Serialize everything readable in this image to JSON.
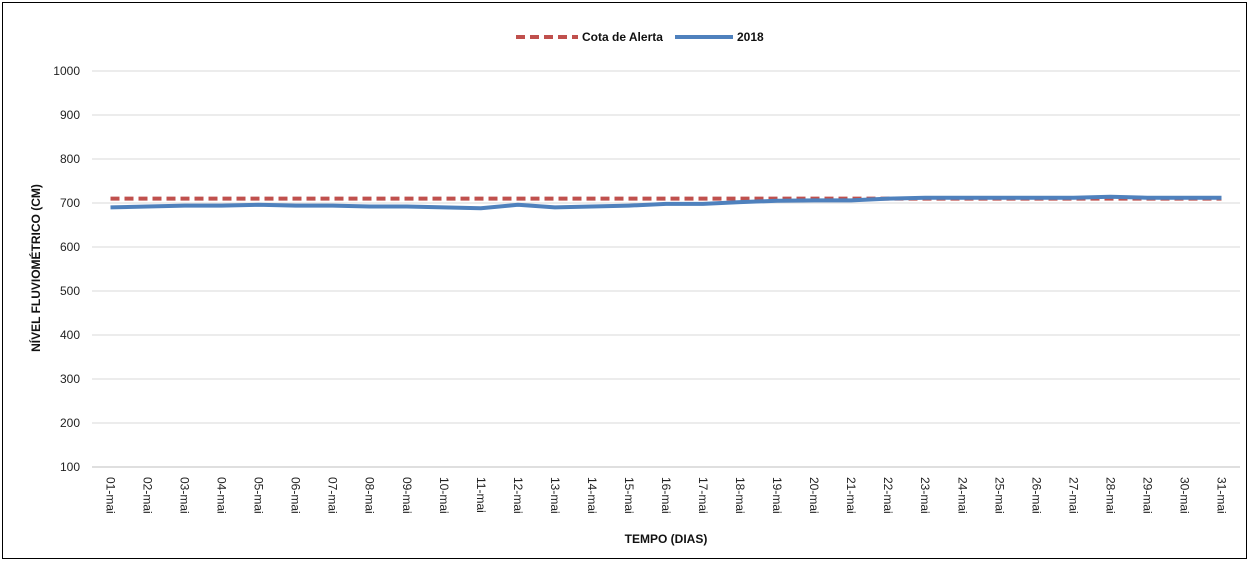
{
  "chart_data": {
    "type": "line",
    "title": "",
    "xlabel": "TEMPO (DIAS)",
    "ylabel": "NÍVEL FLUVIOMÉTRICO (CM)",
    "ylim": [
      100,
      1000
    ],
    "yticks": [
      100,
      200,
      300,
      400,
      500,
      600,
      700,
      800,
      900,
      1000
    ],
    "grid": "horizontal",
    "legend_position": "top",
    "categories": [
      "01-mai",
      "02-mai",
      "03-mai",
      "04-mai",
      "05-mai",
      "06-mai",
      "07-mai",
      "08-mai",
      "09-mai",
      "10-mai",
      "11-mai",
      "12-mai",
      "13-mai",
      "14-mai",
      "15-mai",
      "16-mai",
      "17-mai",
      "18-mai",
      "19-mai",
      "20-mai",
      "21-mai",
      "22-mai",
      "23-mai",
      "24-mai",
      "25-mai",
      "26-mai",
      "27-mai",
      "28-mai",
      "29-mai",
      "30-mai",
      "31-mai"
    ],
    "series": [
      {
        "name": "Cota de Alerta",
        "color": "#c0504d",
        "style": "dashed",
        "values": [
          710,
          710,
          710,
          710,
          710,
          710,
          710,
          710,
          710,
          710,
          710,
          710,
          710,
          710,
          710,
          710,
          710,
          710,
          710,
          710,
          710,
          710,
          710,
          710,
          710,
          710,
          710,
          710,
          710,
          710,
          710
        ]
      },
      {
        "name": "2018",
        "color": "#4f81bd",
        "style": "solid",
        "values": [
          690,
          692,
          694,
          694,
          696,
          694,
          694,
          692,
          692,
          690,
          688,
          696,
          690,
          692,
          694,
          698,
          698,
          702,
          705,
          706,
          706,
          710,
          712,
          712,
          712,
          712,
          712,
          714,
          712,
          712,
          712
        ]
      }
    ]
  }
}
